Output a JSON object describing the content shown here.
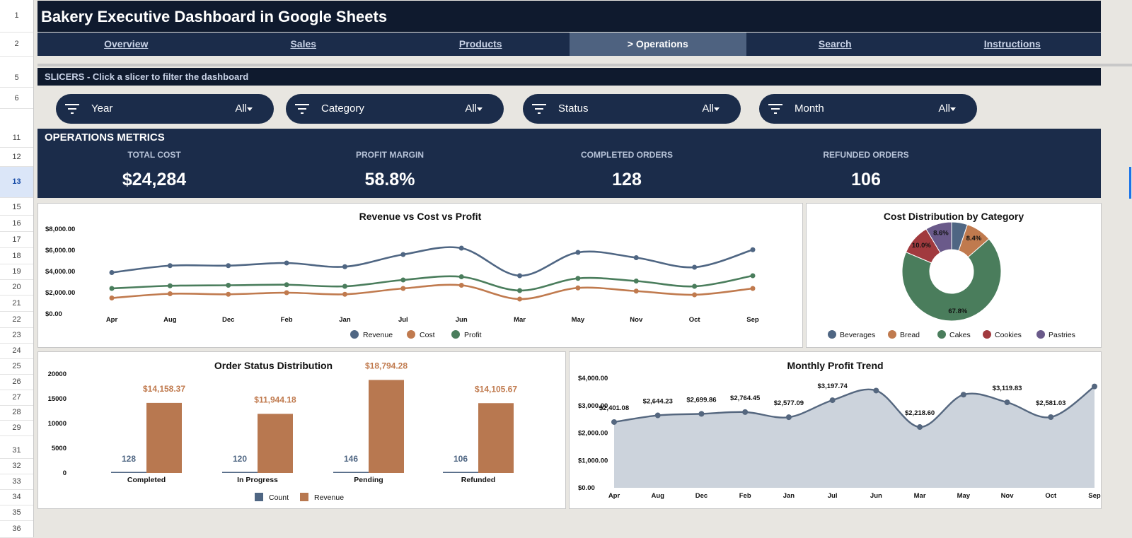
{
  "spreadsheet": {
    "row_numbers": [
      "1",
      "2",
      "5",
      "6",
      "11",
      "12",
      "13",
      "15",
      "16",
      "17",
      "18",
      "19",
      "20",
      "21",
      "22",
      "23",
      "24",
      "25",
      "26",
      "27",
      "28",
      "29",
      "31",
      "32",
      "33",
      "34",
      "35",
      "36"
    ]
  },
  "title": "Bakery Executive Dashboard in Google Sheets",
  "nav": {
    "items": [
      {
        "label": "Overview"
      },
      {
        "label": "Sales"
      },
      {
        "label": "Products"
      },
      {
        "label": "> Operations"
      },
      {
        "label": "Search"
      },
      {
        "label": "Instructions"
      }
    ],
    "active_index": 3
  },
  "slicers": {
    "header": "SLICERS - Click a slicer to filter the dashboard",
    "items": [
      {
        "label": "Year",
        "value": "All"
      },
      {
        "label": "Category",
        "value": "All"
      },
      {
        "label": "Status",
        "value": "All"
      },
      {
        "label": "Month",
        "value": "All"
      }
    ],
    "icon": "filter-icon"
  },
  "metrics": {
    "header": "OPERATIONS METRICS",
    "items": [
      {
        "label": "TOTAL COST",
        "value": "$24,284"
      },
      {
        "label": "PROFIT MARGIN",
        "value": "58.8%"
      },
      {
        "label": "COMPLETED ORDERS",
        "value": "128"
      },
      {
        "label": "REFUNDED ORDERS",
        "value": "106"
      }
    ]
  },
  "colors": {
    "navy_dark": "#0f1a2e",
    "navy": "#1b2c4a",
    "revenue": "#4f6683",
    "cost": "#c07a4e",
    "profit": "#4a7d5c",
    "cookies": "#a13a3e",
    "pastries": "#6a5a8a",
    "count_bar": "#4f6683",
    "revenue_bar": "#b87850",
    "area_fill": "#ccd3dc"
  },
  "chart_data": [
    {
      "id": "revenue-cost-profit",
      "type": "line",
      "title": "Revenue vs Cost vs Profit",
      "categories": [
        "Apr",
        "Aug",
        "Dec",
        "Feb",
        "Jan",
        "Jul",
        "Jun",
        "Mar",
        "May",
        "Nov",
        "Oct",
        "Sep"
      ],
      "y_ticks": [
        "$0.00",
        "$2,000.00",
        "$4,000.00",
        "$6,000.00",
        "$8,000.00"
      ],
      "ylim": [
        0,
        8000
      ],
      "series": [
        {
          "name": "Revenue",
          "color": "#4f6683",
          "values": [
            3900,
            4550,
            4550,
            4800,
            4450,
            5600,
            6200,
            3600,
            5800,
            5300,
            4400,
            6050
          ]
        },
        {
          "name": "Cost",
          "color": "#c07a4e",
          "values": [
            1500,
            1900,
            1850,
            2000,
            1850,
            2400,
            2700,
            1400,
            2450,
            2150,
            1800,
            2400
          ]
        },
        {
          "name": "Profit",
          "color": "#4a7d5c",
          "values": [
            2400,
            2650,
            2700,
            2750,
            2600,
            3200,
            3500,
            2200,
            3350,
            3100,
            2600,
            3600
          ]
        }
      ],
      "legend": "bottom"
    },
    {
      "id": "cost-distribution",
      "type": "pie",
      "title": "Cost Distribution by Category",
      "labels": [
        "Beverages",
        "Bread",
        "Cakes",
        "Cookies",
        "Pastries"
      ],
      "values": [
        5.2,
        8.4,
        67.8,
        10.0,
        8.6
      ],
      "slice_labels": [
        "",
        "8.4%",
        "67.8%",
        "10.0%",
        "8.6%"
      ],
      "colors": [
        "#4f6683",
        "#c07a4e",
        "#4a7d5c",
        "#a13a3e",
        "#6a5a8a"
      ],
      "legend": "bottom"
    },
    {
      "id": "order-status",
      "type": "bar",
      "title": "Order Status Distribution",
      "categories": [
        "Completed",
        "In Progress",
        "Pending",
        "Refunded"
      ],
      "y_ticks": [
        "0",
        "5000",
        "10000",
        "15000",
        "20000"
      ],
      "ylim": [
        0,
        20000
      ],
      "series": [
        {
          "name": "Count",
          "color": "#4f6683",
          "values": [
            128,
            120,
            146,
            106
          ],
          "labels": [
            "128",
            "120",
            "146",
            "106"
          ]
        },
        {
          "name": "Revenue",
          "color": "#b87850",
          "values": [
            14158.37,
            11944.18,
            18794.28,
            14105.67
          ],
          "labels": [
            "$14,158.37",
            "$11,944.18",
            "$18,794.28",
            "$14,105.67"
          ]
        }
      ],
      "legend": "bottom"
    },
    {
      "id": "monthly-profit",
      "type": "area",
      "title": "Monthly Profit Trend",
      "categories": [
        "Apr",
        "Aug",
        "Dec",
        "Feb",
        "Jan",
        "Jul",
        "Jun",
        "Mar",
        "May",
        "Nov",
        "Oct",
        "Sep"
      ],
      "y_ticks": [
        "$0.00",
        "$1,000.00",
        "$2,000.00",
        "$3,000.00",
        "$4,000.00"
      ],
      "ylim": [
        0,
        4000
      ],
      "values": [
        2401.08,
        2644.23,
        2699.86,
        2764.45,
        2577.09,
        3197.74,
        3550,
        2218.6,
        3400,
        3119.83,
        2581.03,
        3700
      ],
      "point_labels": [
        "$2,401.08",
        "$2,644.23",
        "$2,699.86",
        "$2,764.45",
        "$2,577.09",
        "$3,197.74",
        "",
        "$2,218.60",
        "",
        "$3,119.83",
        "$2,581.03",
        ""
      ]
    }
  ]
}
